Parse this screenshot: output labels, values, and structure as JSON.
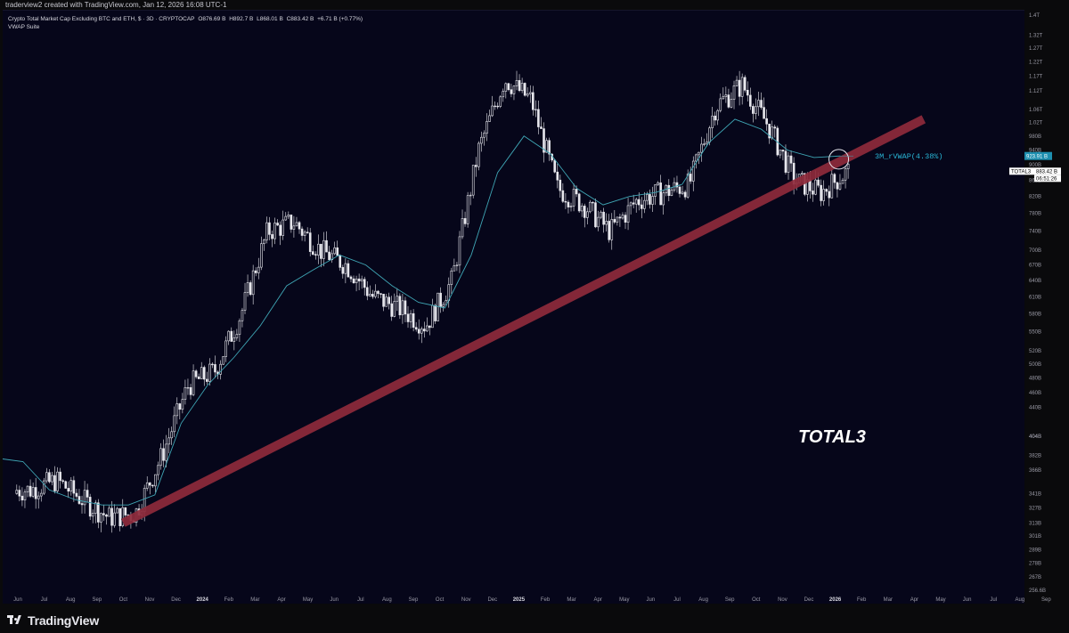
{
  "header": {
    "created_by": "traderview2 created with TradingView.com, Jan 12, 2026 16:08 UTC-1"
  },
  "legend": {
    "symbol": "Crypto Total Market Cap Excluding BTC and ETH, $ · 3D · CRYPTOCAP",
    "open": "O876.69 B",
    "high": "H892.7 B",
    "low": "L868.01 B",
    "close": "C883.42 B",
    "change": "+6.71 B (+0.77%)",
    "indicator": "VWAP Suite"
  },
  "brand": {
    "name": "TradingView"
  },
  "colors": {
    "background": "#06061a",
    "candle": "#e8e8ee",
    "vwap_line": "#3fa6b5",
    "trendline": "#8e2a3b",
    "vwap_label": "#29b6d6",
    "price_text": "#9a9aa6"
  },
  "chart_data": {
    "type": "candlestick",
    "title": "TOTAL3",
    "y_scale": "log",
    "ylim": [
      "256.6B",
      "1.4T"
    ],
    "y_ticks": [
      "1.4T",
      "1.32T",
      "1.27T",
      "1.22T",
      "1.17T",
      "1.12T",
      "1.06T",
      "1.02T",
      "980B",
      "940B",
      "900B",
      "860B",
      "820B",
      "780B",
      "740B",
      "700B",
      "670B",
      "640B",
      "610B",
      "580B",
      "550B",
      "520B",
      "500B",
      "480B",
      "460B",
      "440B",
      "404B",
      "404B",
      "382B",
      "366B",
      "341B",
      "327B",
      "313B",
      "301B",
      "289B",
      "278B",
      "267B",
      "256.6B"
    ],
    "x_ticks": [
      "Jun",
      "Jul",
      "Aug",
      "Sep",
      "Oct",
      "Nov",
      "Dec",
      "2024",
      "Feb",
      "Mar",
      "Apr",
      "May",
      "Jun",
      "Jul",
      "Aug",
      "Sep",
      "Oct",
      "Nov",
      "Dec",
      "2025",
      "Feb",
      "Mar",
      "Apr",
      "May",
      "Jun",
      "Jul",
      "Aug",
      "Sep",
      "Oct",
      "Nov",
      "Dec",
      "2026",
      "Feb",
      "Mar",
      "Apr",
      "May",
      "Jun",
      "Jul",
      "Aug",
      "Sep"
    ],
    "price_path": {
      "dates": [
        "2023-06",
        "2023-07",
        "2023-08",
        "2023-09",
        "2023-10",
        "2023-11",
        "2023-12",
        "2024-01",
        "2024-02",
        "2024-03",
        "2024-04",
        "2024-05",
        "2024-06",
        "2024-07",
        "2024-08",
        "2024-09",
        "2024-10",
        "2024-11",
        "2024-12",
        "2025-01",
        "2025-02",
        "2025-03",
        "2025-04",
        "2025-05",
        "2025-06",
        "2025-07",
        "2025-08",
        "2025-09",
        "2025-10",
        "2025-11",
        "2025-12",
        "2026-01"
      ],
      "close": [
        345,
        355,
        335,
        318,
        322,
        382,
        470,
        490,
        580,
        740,
        760,
        700,
        670,
        610,
        590,
        560,
        640,
        940,
        1160,
        1090,
        840,
        800,
        740,
        810,
        830,
        850,
        1070,
        1140,
        1010,
        860,
        830,
        883
      ]
    },
    "series": [
      {
        "name": "3M_rVWAP(4.38%)",
        "values": [
          375,
          345,
          335,
          330,
          330,
          340,
          420,
          470,
          510,
          560,
          630,
          660,
          690,
          670,
          630,
          600,
          590,
          690,
          880,
          980,
          930,
          840,
          800,
          820,
          830,
          850,
          960,
          1030,
          1000,
          940,
          920,
          924
        ]
      }
    ],
    "trendline": {
      "start": [
        "2023-10-01",
        "318B"
      ],
      "end": [
        "2026-03-01",
        "1000B"
      ]
    },
    "labels": {
      "vwap_name": "3M_rVWAP(4.38%)",
      "vwap_value": "923.91 B",
      "symbol_tag": "TOTAL3",
      "last_price": "883.42 B",
      "countdown": "06:51:26"
    }
  }
}
